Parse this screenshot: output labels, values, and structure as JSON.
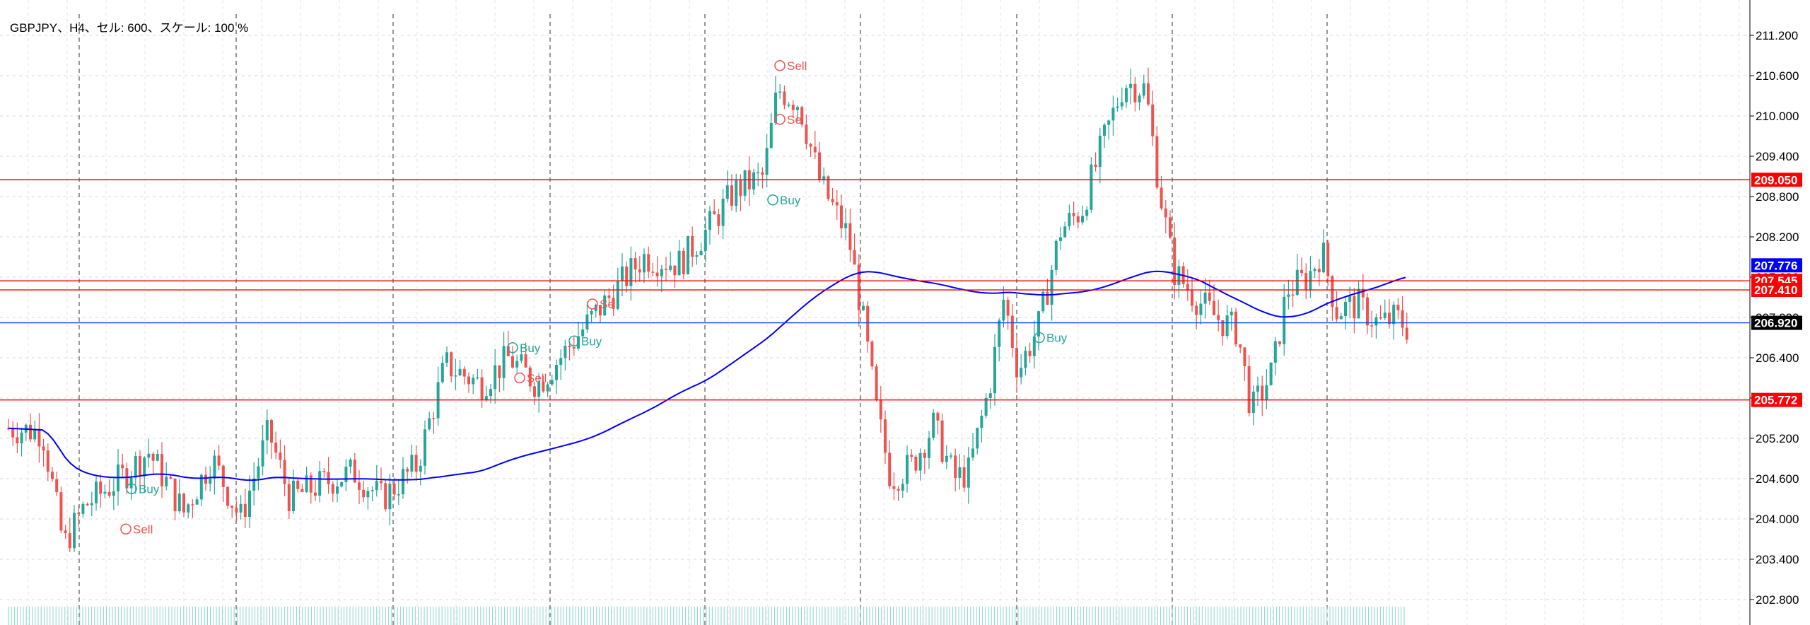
{
  "chart_window": {
    "title": "GBPJPY、H4、セル: 600、スケール: 100 %"
  },
  "chart_data": {
    "type": "candlestick",
    "symbol": "GBPJPY",
    "timeframe": "H4",
    "ylim": [
      202.6,
      211.5
    ],
    "y_ticks": [
      "211.200",
      "210.600",
      "210.000",
      "209.400",
      "208.800",
      "208.200",
      "207.600",
      "207.000",
      "206.400",
      "205.800",
      "205.200",
      "204.600",
      "204.000",
      "203.400",
      "202.800"
    ],
    "horizontal_lines": [
      {
        "price": 209.05,
        "label": "209.050",
        "color": "#ff0000"
      },
      {
        "price": 207.545,
        "label": "207.545",
        "color": "#ff0000"
      },
      {
        "price": 207.41,
        "label": "207.410",
        "color": "#ff0000"
      },
      {
        "price": 205.772,
        "label": "205.772",
        "color": "#ff0000"
      },
      {
        "price": 206.92,
        "label": "206.920",
        "color": "#0044ff"
      }
    ],
    "tags": [
      {
        "label": "209.050",
        "price": 209.05,
        "color": "#ff0000"
      },
      {
        "label": "207.776",
        "price": 207.776,
        "color": "#0000ff"
      },
      {
        "label": "207.545",
        "price": 207.545,
        "color": "#ff0000"
      },
      {
        "label": "207.410",
        "price": 207.41,
        "color": "#ff0000"
      },
      {
        "label": "206.920",
        "price": 206.92,
        "color": "#000000"
      },
      {
        "label": "205.772",
        "price": 205.772,
        "color": "#ff0000"
      }
    ],
    "signals": [
      {
        "label": "Sell",
        "price": 210.75,
        "type": "sell"
      },
      {
        "label": "Se",
        "price": 209.95,
        "type": "sell"
      },
      {
        "label": "Buy",
        "price": 208.75,
        "type": "buy"
      },
      {
        "label": "Buy",
        "price": 206.55,
        "type": "buy"
      },
      {
        "label": "Buy",
        "price": 206.65,
        "type": "buy"
      },
      {
        "label": "Sell",
        "price": 206.1,
        "type": "sell"
      },
      {
        "label": "Se",
        "price": 207.2,
        "type": "sell"
      },
      {
        "label": "Buy",
        "price": 204.45,
        "type": "buy"
      },
      {
        "label": "Sell",
        "price": 203.85,
        "type": "sell"
      },
      {
        "label": "Buy",
        "price": 206.7,
        "type": "buy"
      }
    ],
    "colors": {
      "bull": "#26a69a",
      "bear": "#ef5350",
      "ma_fast": "#ff0000",
      "ma_slow": "#0000ff",
      "grid": "#d9d9d9",
      "session": "#555555"
    }
  }
}
